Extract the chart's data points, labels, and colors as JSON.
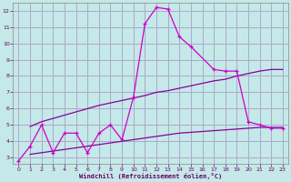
{
  "background_color": "#c5e8e8",
  "grid_color": "#aaaacc",
  "line1_color": "#cc00cc",
  "line2_color": "#880099",
  "line3_color": "#880099",
  "xlabel": "Windchill (Refroidissement éolien,°C)",
  "xlabel_color": "#660066",
  "tick_color": "#660066",
  "xlim": [
    -0.5,
    23.5
  ],
  "ylim": [
    2.6,
    12.5
  ],
  "yticks": [
    3,
    4,
    5,
    6,
    7,
    8,
    9,
    10,
    11,
    12
  ],
  "xticks": [
    0,
    1,
    2,
    3,
    4,
    5,
    6,
    7,
    8,
    9,
    10,
    11,
    12,
    13,
    14,
    15,
    16,
    17,
    18,
    19,
    20,
    21,
    22,
    23
  ],
  "line1_x": [
    0,
    1,
    2,
    3,
    4,
    5,
    6,
    7,
    8,
    9,
    10,
    11,
    12,
    13,
    14,
    15,
    17,
    18,
    19,
    20,
    21,
    22,
    23
  ],
  "line1_y": [
    2.8,
    3.7,
    5.0,
    3.3,
    4.5,
    4.5,
    3.3,
    4.5,
    5.0,
    4.1,
    6.7,
    11.2,
    12.2,
    12.1,
    10.4,
    9.8,
    8.4,
    8.3,
    8.3,
    5.2,
    5.0,
    4.8,
    4.8
  ],
  "line2_x": [
    1,
    2,
    3,
    4,
    5,
    6,
    7,
    8,
    9,
    10,
    11,
    12,
    13,
    14,
    15,
    16,
    17,
    18,
    19,
    20,
    21,
    22,
    23
  ],
  "line2_y": [
    4.9,
    5.2,
    5.4,
    5.6,
    5.8,
    6.0,
    6.2,
    6.35,
    6.5,
    6.65,
    6.8,
    7.0,
    7.1,
    7.25,
    7.4,
    7.55,
    7.7,
    7.8,
    8.0,
    8.15,
    8.3,
    8.4,
    8.4
  ],
  "line3_x": [
    1,
    2,
    3,
    4,
    5,
    6,
    7,
    8,
    9,
    10,
    11,
    12,
    13,
    14,
    15,
    16,
    17,
    18,
    19,
    20,
    21,
    22,
    23
  ],
  "line3_y": [
    3.2,
    3.3,
    3.4,
    3.5,
    3.6,
    3.7,
    3.8,
    3.9,
    4.0,
    4.1,
    4.2,
    4.3,
    4.4,
    4.5,
    4.55,
    4.6,
    4.65,
    4.7,
    4.75,
    4.8,
    4.85,
    4.85,
    4.85
  ]
}
